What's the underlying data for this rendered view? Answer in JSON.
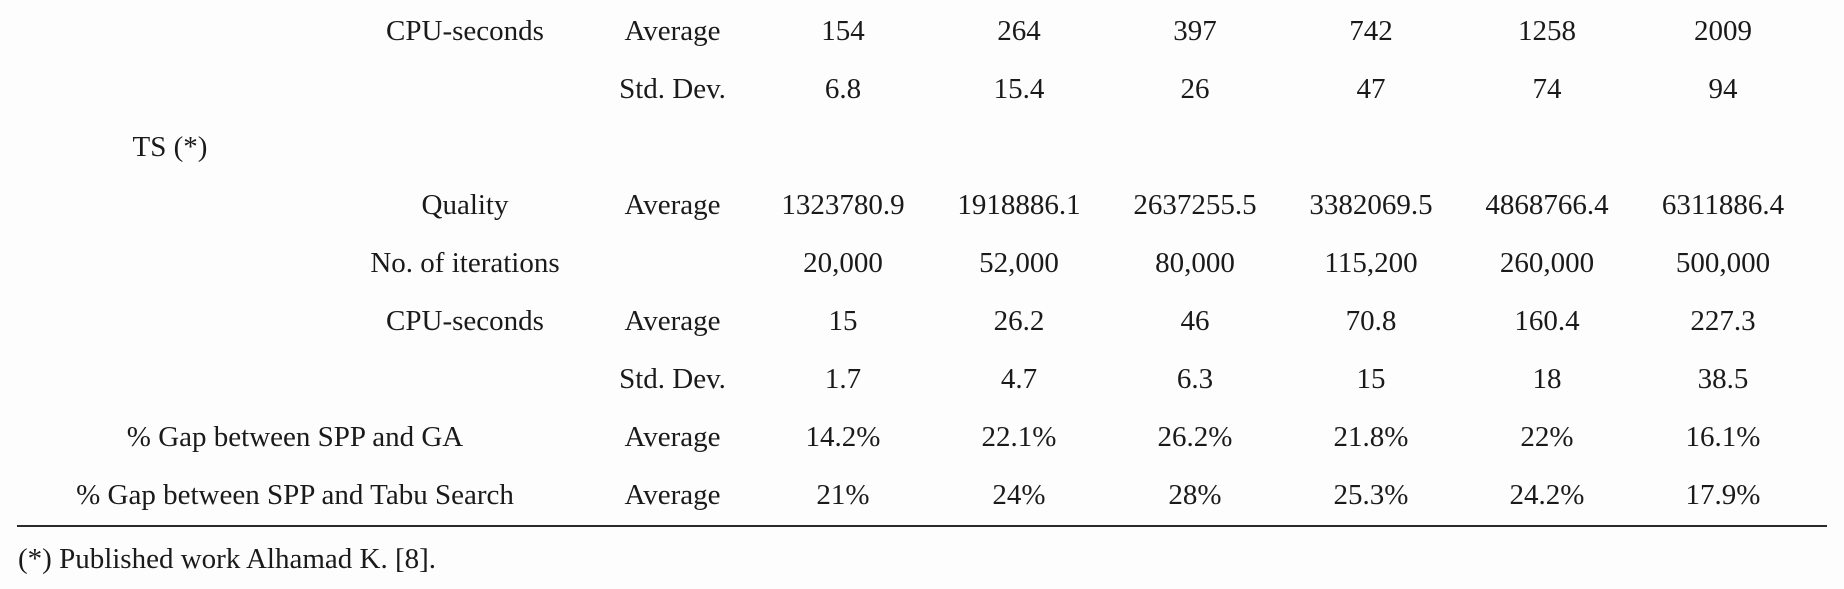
{
  "style": {
    "background_color": "#fdfdfd",
    "ink_color": "#1a1a1a",
    "rule_color": "#2b2b2b"
  },
  "table": {
    "rows": [
      {
        "method": "",
        "metric": "CPU-seconds",
        "stat": "Average",
        "values": [
          "154",
          "264",
          "397",
          "742",
          "1258",
          "2009"
        ]
      },
      {
        "method": "",
        "metric": "",
        "stat": "Std. Dev.",
        "values": [
          "6.8",
          "15.4",
          "26",
          "47",
          "74",
          "94"
        ]
      },
      {
        "method": "TS (*)",
        "metric": "",
        "stat": "",
        "values": [
          "",
          "",
          "",
          "",
          "",
          ""
        ]
      },
      {
        "method": "",
        "metric": "Quality",
        "stat": "Average",
        "values": [
          "1323780.9",
          "1918886.1",
          "2637255.5",
          "3382069.5",
          "4868766.4",
          "6311886.4"
        ]
      },
      {
        "method": "",
        "metric": "No. of iterations",
        "stat": "",
        "values": [
          "20,000",
          "52,000",
          "80,000",
          "115,200",
          "260,000",
          "500,000"
        ]
      },
      {
        "method": "",
        "metric": "CPU-seconds",
        "stat": "Average",
        "values": [
          "15",
          "26.2",
          "46",
          "70.8",
          "160.4",
          "227.3"
        ]
      },
      {
        "method": "",
        "metric": "",
        "stat": "Std. Dev.",
        "values": [
          "1.7",
          "4.7",
          "6.3",
          "15",
          "18",
          "38.5"
        ]
      },
      {
        "wide_label": "% Gap between SPP and GA",
        "stat": "Average",
        "values": [
          "14.2%",
          "22.1%",
          "26.2%",
          "21.8%",
          "22%",
          "16.1%"
        ]
      },
      {
        "wide_label": "% Gap between SPP and Tabu Search",
        "stat": "Average",
        "values": [
          "21%",
          "24%",
          "28%",
          "25.3%",
          "24.2%",
          "17.9%"
        ]
      }
    ],
    "footnote": "(*) Published work Alhamad K. [8]."
  }
}
